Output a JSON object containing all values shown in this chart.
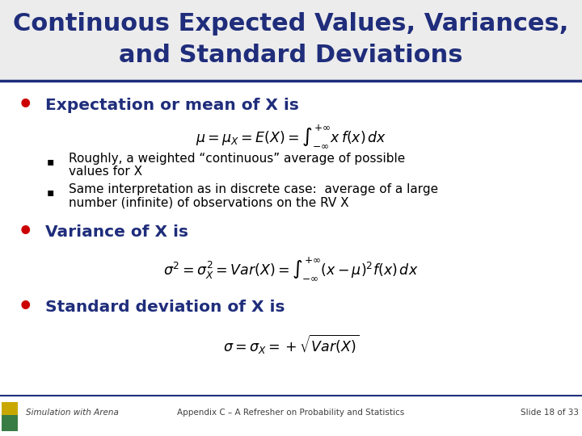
{
  "title_line1": "Continuous Expected Values, Variances,",
  "title_line2": "and Standard Deviations",
  "title_color": "#1F2D7B",
  "title_fontsize": 22,
  "bg_color": "#FFFFFF",
  "bullet_color": "#CC0000",
  "bullet_text_color": "#1F2D7B",
  "body_text_color": "#000000",
  "header_line_color": "#1F2D7B",
  "footer_text_color": "#404040",
  "footer_left": "Simulation with Arena",
  "footer_center": "Appendix C - A Refresher on Probability and Statistics",
  "footer_right": "Slide 18 of 33",
  "bullet1_text": "Expectation or mean of X is",
  "sub1_line1": "Roughly, a weighted “continuous” average of possible",
  "sub1_line2": "values for X",
  "sub2_line1": "Same interpretation as in discrete case:  average of a large",
  "sub2_line2": "number (infinite) of observations on the RV X",
  "bullet2_text": "Variance of X is",
  "bullet3_text": "Standard deviation of X is",
  "title_bg_color": "#ECECEC"
}
